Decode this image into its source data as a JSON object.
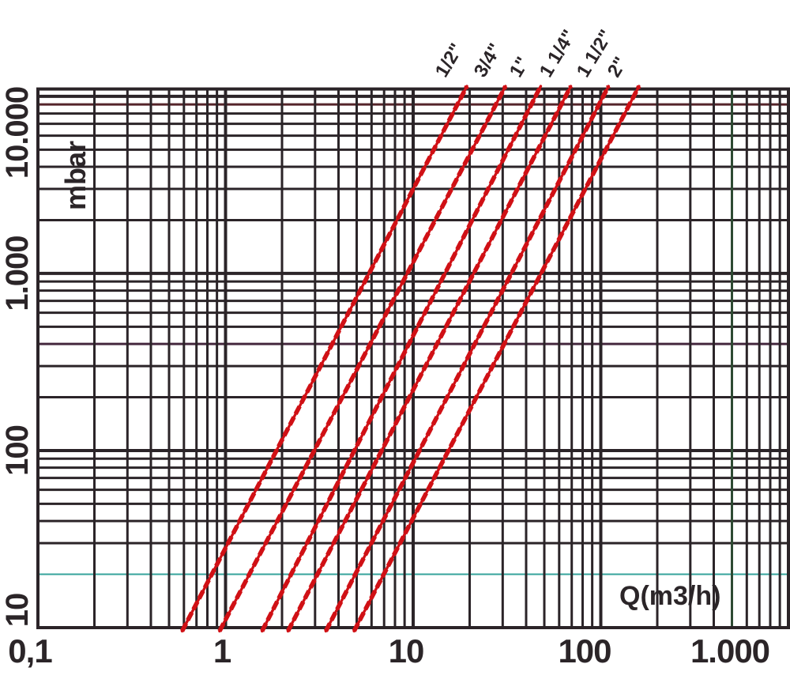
{
  "page": {
    "background": "#ffffff"
  },
  "chart_data": {
    "type": "line",
    "scale": "log-log",
    "grid_on": true,
    "x_axis": {
      "label": "Q(m3/h)",
      "min": 0.1,
      "max": 1000,
      "ticks": [
        {
          "value": 0.1,
          "label": "0,1"
        },
        {
          "value": 1,
          "label": "1"
        },
        {
          "value": 10,
          "label": "10"
        },
        {
          "value": 100,
          "label": "100"
        },
        {
          "value": 1000,
          "label": "1.000"
        }
      ]
    },
    "y_axis": {
      "label": "mbar",
      "min": 10,
      "max": 11000,
      "ticks": [
        {
          "value": 10,
          "label": "10"
        },
        {
          "value": 100,
          "label": "100"
        },
        {
          "value": 1000,
          "label": "1.000"
        },
        {
          "value": 10000,
          "label": "10.000"
        }
      ]
    },
    "line_color": "#d01015",
    "grid": {
      "color": "#2b2428",
      "major_width": 4,
      "minor_width": 3
    },
    "series": [
      {
        "label": "1/2\"",
        "points": [
          [
            0.6,
            10
          ],
          [
            19,
            11000
          ]
        ]
      },
      {
        "label": "3/4\"",
        "points": [
          [
            0.95,
            10
          ],
          [
            30.5,
            11000
          ]
        ]
      },
      {
        "label": "1\"",
        "points": [
          [
            1.6,
            10
          ],
          [
            47,
            11000
          ]
        ]
      },
      {
        "label": "1 1/4\"",
        "points": [
          [
            2.2,
            10
          ],
          [
            68,
            11000
          ]
        ]
      },
      {
        "label": "1 1/2\"",
        "points": [
          [
            3.5,
            10
          ],
          [
            108,
            11000
          ]
        ]
      },
      {
        "label": "2\"",
        "points": [
          [
            4.95,
            10
          ],
          [
            157,
            11000
          ]
        ]
      }
    ],
    "reference_lines": [
      {
        "orientation": "horizontal",
        "value": 20,
        "color": "#35a39b",
        "width": 2
      }
    ],
    "tinted_gridlines": [
      {
        "orientation": "horizontal",
        "value": 9000,
        "color": "#55242a"
      },
      {
        "orientation": "horizontal",
        "value": 400,
        "color": "#45283e"
      },
      {
        "orientation": "vertical",
        "value": 500,
        "color": "#2e4a33"
      }
    ]
  }
}
